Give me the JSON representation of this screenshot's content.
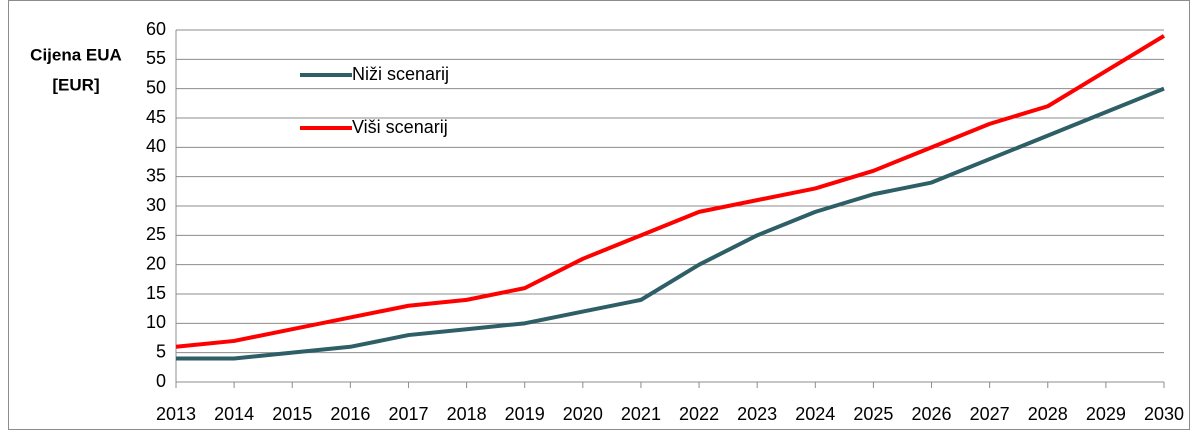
{
  "chart_data": {
    "type": "line",
    "y_label": [
      "Cijena EUA",
      "[EUR]"
    ],
    "categories": [
      "2013",
      "2014",
      "2015",
      "2016",
      "2017",
      "2018",
      "2019",
      "2020",
      "2021",
      "2022",
      "2023",
      "2024",
      "2025",
      "2026",
      "2027",
      "2028",
      "2029",
      "2030"
    ],
    "series": [
      {
        "name": "Niži scenarij",
        "color": "#2e5e66",
        "values": [
          4,
          4,
          5,
          6,
          8,
          9,
          10,
          12,
          14,
          20,
          25,
          29,
          32,
          34,
          38,
          42,
          46,
          50
        ]
      },
      {
        "name": "Viši scenarij",
        "color": "#ff0000",
        "values": [
          6,
          7,
          9,
          11,
          13,
          14,
          16,
          21,
          25,
          29,
          31,
          33,
          36,
          40,
          44,
          47,
          53,
          59
        ]
      }
    ],
    "ylim": [
      0,
      60
    ],
    "yticks": [
      0,
      5,
      10,
      15,
      20,
      25,
      30,
      35,
      40,
      45,
      50,
      55,
      60
    ],
    "grid": true,
    "legend": "top-left"
  }
}
